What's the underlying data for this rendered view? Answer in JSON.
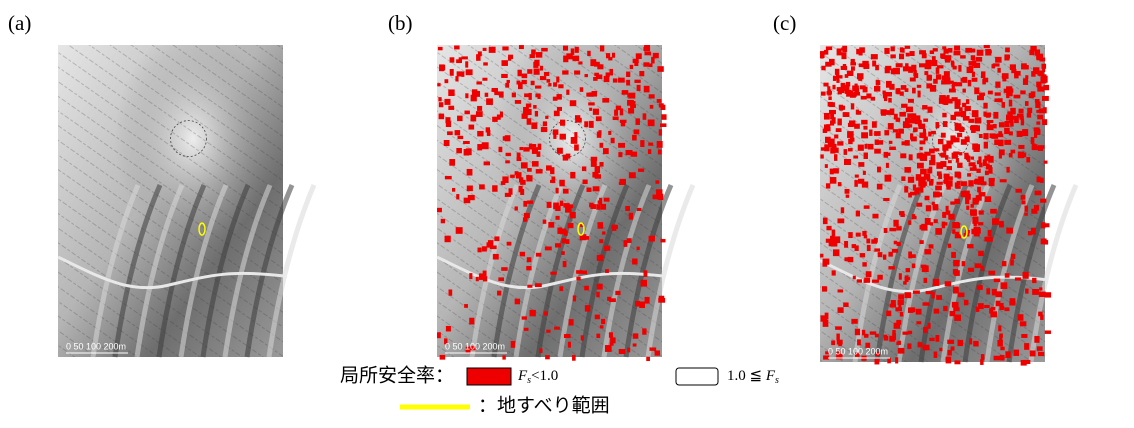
{
  "panels": [
    {
      "label": "(a)",
      "scale": "0   50  100    200m"
    },
    {
      "label": "(b)",
      "scale": "0   50  100    200m"
    },
    {
      "label": "(c)",
      "scale": "0   50  100    200m"
    }
  ],
  "legend": {
    "title": "局所安全率：",
    "unstable": {
      "symbol": "F",
      "sub": "s",
      "rest": "<1.0"
    },
    "stable": {
      "prefix": "1.0 ≦ ",
      "symbol": "F",
      "sub": "s"
    },
    "landslide": "：地すべり範囲"
  }
}
